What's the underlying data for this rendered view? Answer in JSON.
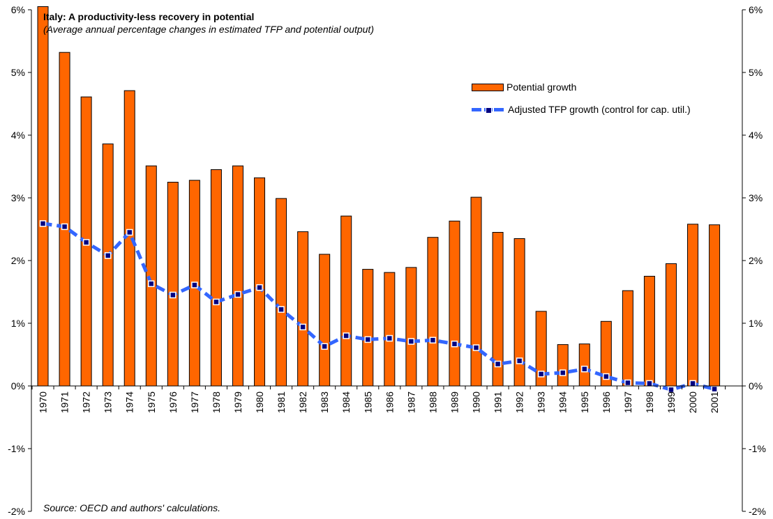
{
  "chart_data": {
    "type": "bar",
    "title": "Italy: A productivity-less recovery in potential",
    "subtitle": "(Average annual percentage changes in estimated TFP and potential output)",
    "source": "Source: OECD and authors' calculations.",
    "categories": [
      "1970",
      "1971",
      "1972",
      "1973",
      "1974",
      "1975",
      "1976",
      "1977",
      "1978",
      "1979",
      "1980",
      "1981",
      "1982",
      "1983",
      "1984",
      "1985",
      "1986",
      "1987",
      "1988",
      "1989",
      "1990",
      "1991",
      "1992",
      "1993",
      "1994",
      "1995",
      "1996",
      "1997",
      "1998",
      "1999",
      "2000",
      "2001"
    ],
    "series": [
      {
        "name": "Potential growth",
        "type": "bar",
        "values": [
          6.05,
          5.32,
          4.61,
          3.86,
          4.71,
          3.51,
          3.25,
          3.28,
          3.45,
          3.51,
          3.32,
          2.99,
          2.46,
          2.1,
          2.71,
          1.86,
          1.81,
          1.89,
          2.37,
          2.63,
          3.01,
          2.45,
          2.35,
          1.19,
          0.66,
          0.67,
          1.03,
          1.52,
          1.75,
          1.95,
          2.58,
          2.57
        ]
      },
      {
        "name": "Adjusted TFP growth (control for cap. util.)",
        "type": "line",
        "values": [
          2.59,
          2.54,
          2.29,
          2.08,
          2.45,
          1.63,
          1.45,
          1.61,
          1.34,
          1.46,
          1.57,
          1.22,
          0.94,
          0.63,
          0.8,
          0.74,
          0.76,
          0.71,
          0.73,
          0.67,
          0.61,
          0.35,
          0.4,
          0.19,
          0.21,
          0.27,
          0.15,
          0.05,
          0.04,
          -0.06,
          0.04,
          -0.05
        ]
      }
    ],
    "ylim": [
      -2,
      6
    ],
    "yticks": [
      "-2%",
      "-1%",
      "0%",
      "1%",
      "2%",
      "3%",
      "4%",
      "5%",
      "6%"
    ],
    "colors": {
      "bar": "#ff6600",
      "line": "#3366ff",
      "marker": "#000080"
    },
    "legend_position": "top-right",
    "grid": false
  }
}
